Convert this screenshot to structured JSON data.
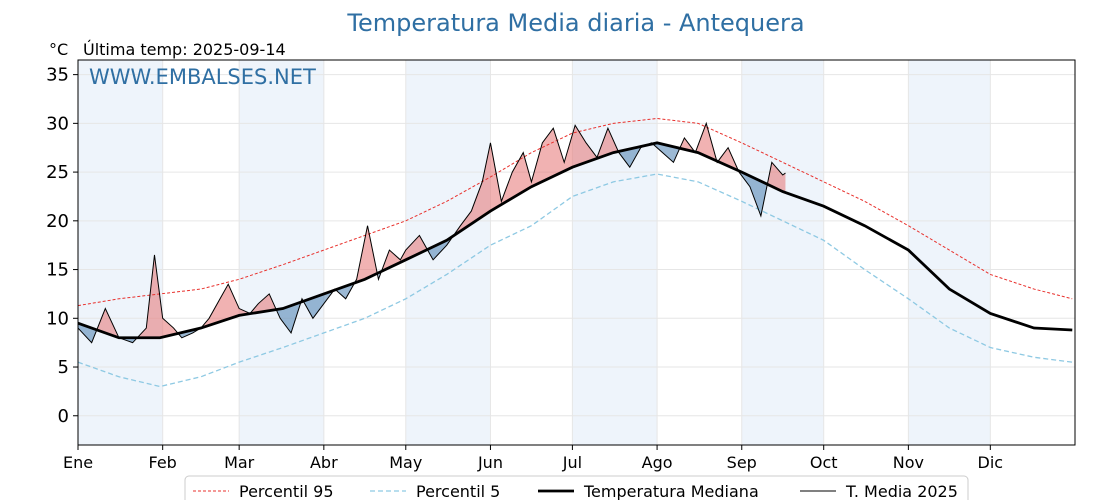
{
  "chart_data": {
    "type": "line",
    "title": "Temperatura Media diaria - Antequera",
    "unit": "°C",
    "subtitle": "Última temp: 2025-09-14",
    "watermark": "WWW.EMBALSES.NET",
    "ylim": [
      -3,
      36.5
    ],
    "yticks": [
      0,
      5,
      10,
      15,
      20,
      25,
      30,
      35
    ],
    "xlim": [
      0,
      365
    ],
    "months": [
      "Ene",
      "Feb",
      "Mar",
      "Abr",
      "May",
      "Jun",
      "Jul",
      "Ago",
      "Sep",
      "Oct",
      "Nov",
      "Dic"
    ],
    "month_start_days": [
      0,
      31,
      59,
      90,
      120,
      151,
      181,
      212,
      243,
      273,
      304,
      334
    ],
    "shaded_months": [
      0,
      2,
      4,
      6,
      8,
      10
    ],
    "grid": true,
    "legend_position": "bottom",
    "colors": {
      "p95": "#e8302c",
      "p5": "#8ec9e3",
      "median": "#000000",
      "media2025": "#000000",
      "above": "#e67272",
      "below": "#4a80b0",
      "shade": "#eef4fb"
    },
    "series": [
      {
        "name": "Percentil 95",
        "points": [
          [
            0,
            11.3
          ],
          [
            15,
            12
          ],
          [
            30,
            12.5
          ],
          [
            45,
            13
          ],
          [
            59,
            14
          ],
          [
            75,
            15.5
          ],
          [
            90,
            17
          ],
          [
            105,
            18.5
          ],
          [
            120,
            20
          ],
          [
            135,
            22
          ],
          [
            151,
            24.5
          ],
          [
            166,
            27
          ],
          [
            181,
            29
          ],
          [
            196,
            30
          ],
          [
            212,
            30.5
          ],
          [
            227,
            30
          ],
          [
            243,
            28
          ],
          [
            258,
            26
          ],
          [
            273,
            24
          ],
          [
            288,
            22
          ],
          [
            304,
            19.5
          ],
          [
            319,
            17
          ],
          [
            334,
            14.5
          ],
          [
            350,
            13
          ],
          [
            364,
            12
          ]
        ]
      },
      {
        "name": "Percentil 5",
        "points": [
          [
            0,
            5.5
          ],
          [
            15,
            4
          ],
          [
            30,
            3
          ],
          [
            45,
            4
          ],
          [
            59,
            5.5
          ],
          [
            75,
            7
          ],
          [
            90,
            8.5
          ],
          [
            105,
            10
          ],
          [
            120,
            12
          ],
          [
            135,
            14.5
          ],
          [
            151,
            17.5
          ],
          [
            166,
            19.5
          ],
          [
            181,
            22.5
          ],
          [
            196,
            24
          ],
          [
            212,
            24.8
          ],
          [
            227,
            24
          ],
          [
            243,
            22
          ],
          [
            258,
            20
          ],
          [
            273,
            18
          ],
          [
            288,
            15
          ],
          [
            304,
            12
          ],
          [
            319,
            9
          ],
          [
            334,
            7
          ],
          [
            350,
            6
          ],
          [
            364,
            5.5
          ]
        ]
      },
      {
        "name": "Temperatura Mediana",
        "points": [
          [
            0,
            9.5
          ],
          [
            15,
            8
          ],
          [
            30,
            8
          ],
          [
            45,
            9
          ],
          [
            59,
            10.3
          ],
          [
            75,
            11
          ],
          [
            90,
            12.5
          ],
          [
            105,
            14
          ],
          [
            120,
            16
          ],
          [
            135,
            18
          ],
          [
            151,
            21
          ],
          [
            166,
            23.5
          ],
          [
            181,
            25.5
          ],
          [
            196,
            27
          ],
          [
            212,
            28
          ],
          [
            227,
            27
          ],
          [
            243,
            25
          ],
          [
            258,
            23
          ],
          [
            273,
            21.5
          ],
          [
            288,
            19.5
          ],
          [
            304,
            17
          ],
          [
            319,
            13
          ],
          [
            334,
            10.5
          ],
          [
            350,
            9
          ],
          [
            364,
            8.8
          ]
        ]
      },
      {
        "name": "T. Media 2025",
        "points": [
          [
            0,
            9
          ],
          [
            5,
            7.5
          ],
          [
            10,
            11
          ],
          [
            15,
            8
          ],
          [
            20,
            7.5
          ],
          [
            25,
            9
          ],
          [
            28,
            16.5
          ],
          [
            31,
            10
          ],
          [
            35,
            9
          ],
          [
            38,
            8
          ],
          [
            42,
            8.5
          ],
          [
            45,
            9
          ],
          [
            48,
            10
          ],
          [
            52,
            12
          ],
          [
            55,
            13.5
          ],
          [
            59,
            11
          ],
          [
            63,
            10.5
          ],
          [
            66,
            11.5
          ],
          [
            70,
            12.5
          ],
          [
            74,
            10
          ],
          [
            78,
            8.5
          ],
          [
            82,
            12
          ],
          [
            86,
            10
          ],
          [
            90,
            11.5
          ],
          [
            94,
            13
          ],
          [
            98,
            12
          ],
          [
            102,
            14
          ],
          [
            106,
            19.5
          ],
          [
            110,
            14
          ],
          [
            114,
            17
          ],
          [
            118,
            16
          ],
          [
            120,
            17
          ],
          [
            125,
            18.5
          ],
          [
            130,
            16
          ],
          [
            135,
            17.5
          ],
          [
            140,
            19.5
          ],
          [
            144,
            21
          ],
          [
            148,
            24
          ],
          [
            151,
            28
          ],
          [
            155,
            22
          ],
          [
            159,
            25
          ],
          [
            163,
            27
          ],
          [
            166,
            24
          ],
          [
            170,
            28
          ],
          [
            174,
            29.5
          ],
          [
            178,
            26
          ],
          [
            182,
            29.8
          ],
          [
            186,
            28
          ],
          [
            190,
            26.5
          ],
          [
            194,
            29.5
          ],
          [
            198,
            27
          ],
          [
            202,
            25.5
          ],
          [
            206,
            27.5
          ],
          [
            210,
            28
          ],
          [
            214,
            27
          ],
          [
            218,
            26
          ],
          [
            222,
            28.5
          ],
          [
            226,
            27
          ],
          [
            230,
            30
          ],
          [
            234,
            26
          ],
          [
            238,
            27.5
          ],
          [
            242,
            25
          ],
          [
            246,
            23.5
          ],
          [
            250,
            20.5
          ],
          [
            254,
            26
          ],
          [
            258,
            24.7
          ],
          [
            259,
            24.9
          ]
        ]
      }
    ]
  }
}
